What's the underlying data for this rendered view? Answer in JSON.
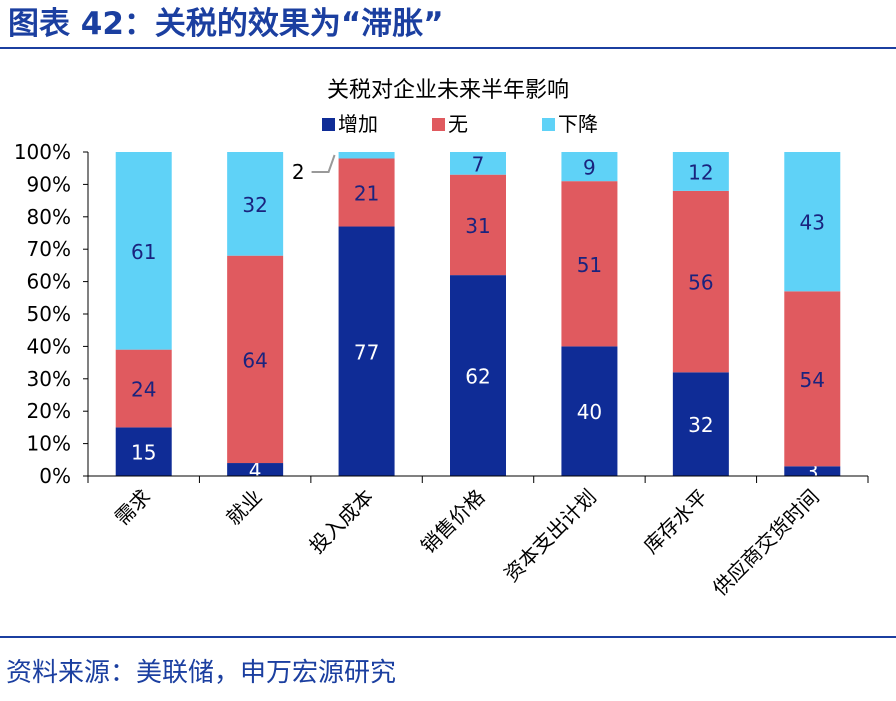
{
  "header": {
    "title": "图表 42：关税的效果为“滞胀”"
  },
  "footer": {
    "source": "资料来源：美联储，申万宏源研究"
  },
  "chart_data": {
    "type": "bar",
    "stacked": true,
    "title": "关税对企业未来半年影响",
    "legend_position": "top",
    "categories": [
      "需求",
      "就业",
      "投入成本",
      "销售价格",
      "资本支出计划",
      "库存水平",
      "供应商交货时间"
    ],
    "series": [
      {
        "name": "增加",
        "color": "#0f2c96",
        "values": [
          15,
          4,
          77,
          62,
          40,
          32,
          3
        ]
      },
      {
        "name": "无",
        "color": "#e05a5f",
        "values": [
          24,
          64,
          21,
          31,
          51,
          56,
          54
        ]
      },
      {
        "name": "下降",
        "color": "#5fd2f7",
        "values": [
          61,
          32,
          2,
          7,
          9,
          12,
          43
        ]
      }
    ],
    "y_ticks": [
      "0%",
      "10%",
      "20%",
      "30%",
      "40%",
      "50%",
      "60%",
      "70%",
      "80%",
      "90%",
      "100%"
    ],
    "ylim": [
      0,
      100
    ],
    "grid": false,
    "callout_label": "2"
  }
}
